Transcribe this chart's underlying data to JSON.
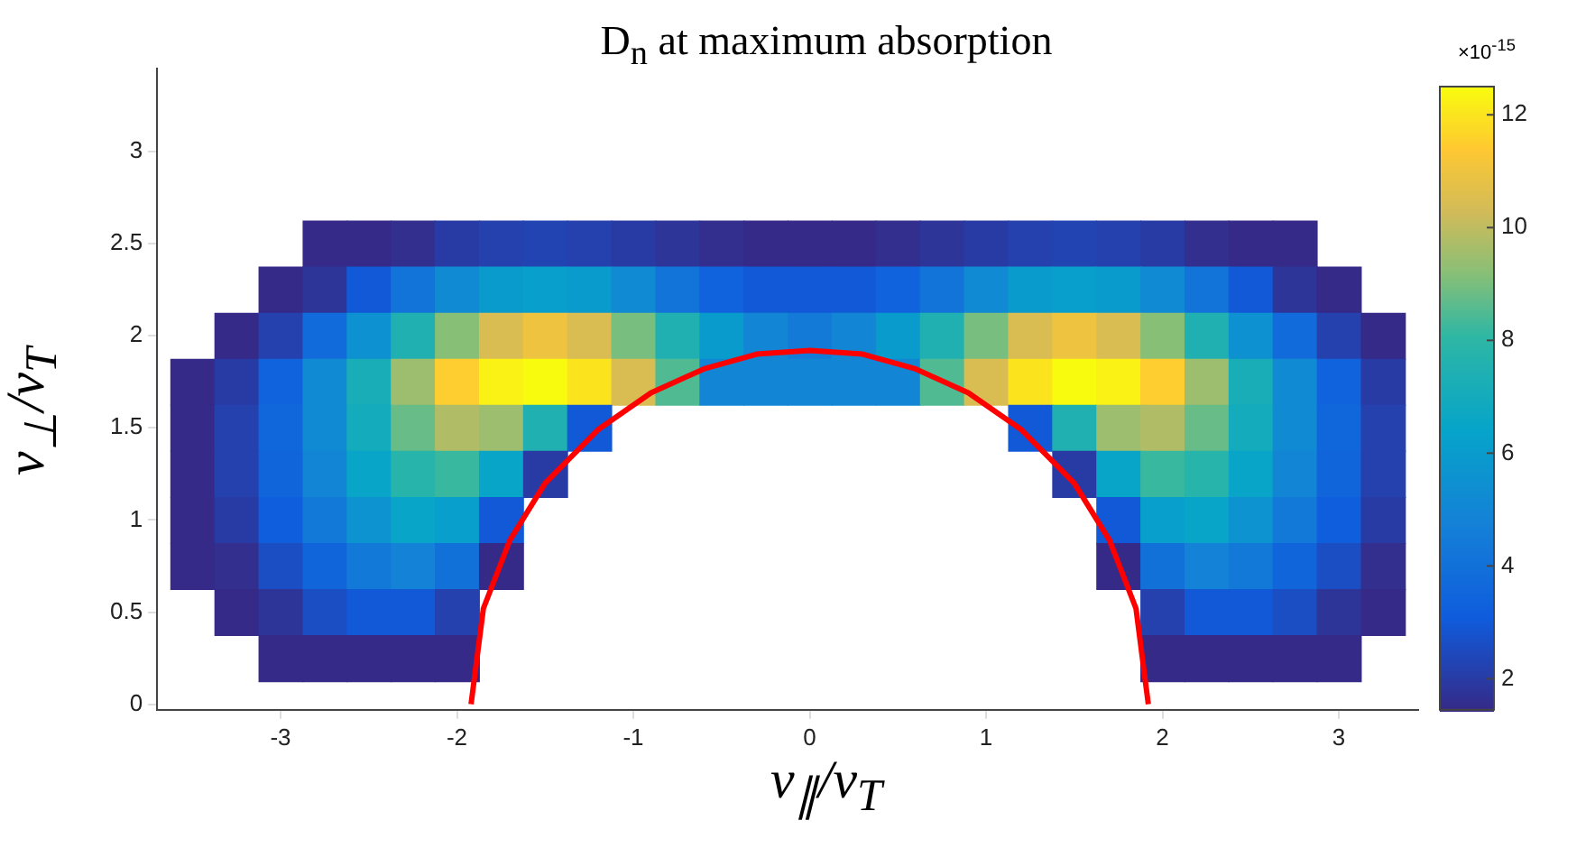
{
  "chart_data": {
    "type": "heatmap",
    "title": "D$_{n}$ at maximum absorption",
    "xlabel": "v$_{∥}$/v$_{T}$",
    "ylabel": "v$_{⊥}$/v$_{T}$",
    "x": [
      -3.5,
      -3.25,
      -3,
      -2.75,
      -2.5,
      -2.25,
      -2,
      -1.75,
      -1.5,
      -1.25,
      -1,
      -0.75,
      -0.5,
      -0.25,
      0,
      0.25,
      0.5,
      0.75,
      1,
      1.25,
      1.5,
      1.75,
      2,
      2.25,
      2.5,
      2.75,
      3,
      3.25
    ],
    "y": [
      2.5,
      2.25,
      2,
      1.75,
      1.5,
      1.25,
      1,
      0.75,
      0.5,
      0.25
    ],
    "cells": [
      [
        null,
        null,
        null,
        0.8,
        1.2,
        1.6,
        2,
        2.2,
        2.3,
        2.2,
        2,
        1.8,
        1.6,
        1.4,
        1.2,
        1.4,
        1.6,
        1.8,
        2,
        2.2,
        2.3,
        2.2,
        2,
        1.6,
        1.2,
        0.8,
        null,
        null
      ],
      [
        null,
        null,
        0.9,
        1.8,
        3,
        4.2,
        5.2,
        6,
        6.2,
        6,
        5.2,
        4.2,
        3.4,
        3,
        3,
        3,
        3.4,
        4.2,
        5.2,
        6,
        6.2,
        6,
        5.2,
        4.2,
        3,
        1.8,
        0.9,
        null
      ],
      [
        null,
        1,
        2.2,
        3.8,
        5.5,
        7.5,
        9.2,
        10.5,
        11,
        10.5,
        9,
        7.5,
        6,
        5,
        4.5,
        5,
        6,
        7.5,
        9,
        10.5,
        11,
        10.5,
        9.2,
        7.5,
        5.5,
        3.8,
        2.2,
        1
      ],
      [
        0.8,
        2,
        3.4,
        5.2,
        7.2,
        9.5,
        11.5,
        12.3,
        12.5,
        12,
        10.5,
        8.5,
        5,
        5,
        5,
        5,
        5,
        8.5,
        10.5,
        12,
        12.5,
        12.3,
        11.5,
        9.5,
        7.2,
        5.2,
        3.4,
        2
      ],
      [
        1,
        2.2,
        3.6,
        5.2,
        7,
        8.8,
        9.8,
        9.5,
        7.5,
        3,
        null,
        null,
        null,
        null,
        null,
        null,
        null,
        null,
        null,
        3,
        7.5,
        9.5,
        9.8,
        8.8,
        7,
        5.2,
        3.6,
        2.2
      ],
      [
        1.1,
        2.2,
        3.5,
        5,
        6.5,
        7.8,
        8.2,
        6.5,
        2,
        null,
        null,
        null,
        null,
        null,
        null,
        null,
        null,
        null,
        null,
        null,
        2,
        6.5,
        8.2,
        7.8,
        6.5,
        5,
        3.5,
        2.2
      ],
      [
        1,
        2,
        3.2,
        4.4,
        5.6,
        6.5,
        6.2,
        3,
        null,
        null,
        null,
        null,
        null,
        null,
        null,
        null,
        null,
        null,
        null,
        null,
        null,
        3,
        6.2,
        6.5,
        5.6,
        4.4,
        3.2,
        2
      ],
      [
        0.8,
        1.6,
        2.6,
        3.5,
        4.4,
        4.8,
        4,
        1.2,
        null,
        null,
        null,
        null,
        null,
        null,
        null,
        null,
        null,
        null,
        null,
        null,
        null,
        1.2,
        4,
        4.8,
        4.4,
        3.5,
        2.6,
        1.6
      ],
      [
        null,
        1,
        1.8,
        2.6,
        3,
        3,
        2.2,
        null,
        null,
        null,
        null,
        null,
        null,
        null,
        null,
        null,
        null,
        null,
        null,
        null,
        null,
        null,
        2.2,
        3,
        3,
        2.6,
        1.8,
        1
      ],
      [
        null,
        null,
        0.8,
        1.2,
        1.4,
        1.3,
        1,
        null,
        null,
        null,
        null,
        null,
        null,
        null,
        null,
        null,
        null,
        null,
        null,
        null,
        null,
        null,
        1,
        1.3,
        1.4,
        1.2,
        0.8,
        null
      ]
    ],
    "clim": [
      1.45,
      12.5
    ],
    "cticks": [
      2,
      4,
      6,
      8,
      10,
      12
    ],
    "xlim": [
      -3.7,
      3.45
    ],
    "xticks": [
      -3,
      -2,
      -1,
      0,
      1,
      2,
      3
    ],
    "ylim": [
      -0.03,
      3.45
    ],
    "yticks": [
      0,
      0.5,
      1,
      1.5,
      2,
      2.5,
      3
    ],
    "series": [
      {
        "type": "line",
        "color": "#ff0000",
        "x": [
          -1.92,
          -1.85,
          -1.7,
          -1.5,
          -1.2,
          -0.9,
          -0.6,
          -0.3,
          0,
          0.3,
          0.6,
          0.9,
          1.2,
          1.5,
          1.7,
          1.85,
          1.92
        ],
        "values": [
          0,
          0.52,
          0.89,
          1.2,
          1.49,
          1.69,
          1.82,
          1.9,
          1.92,
          1.9,
          1.82,
          1.69,
          1.49,
          1.2,
          0.89,
          0.52,
          0
        ]
      }
    ],
    "annotations": [
      "×10$^{-15}$"
    ],
    "grid": false,
    "legend": false
  }
}
